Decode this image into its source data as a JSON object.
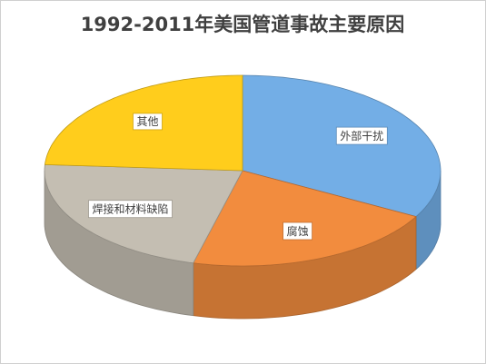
{
  "chart_data": {
    "type": "pie3d",
    "title": "1992-2011年美国管道事故主要原因",
    "categories": [
      "外部干扰",
      "腐蚀",
      "焊接和材料缺陷",
      "其他"
    ],
    "values": [
      33,
      21,
      22,
      24
    ],
    "colors": [
      "#73aee6",
      "#f28c3e",
      "#c4beb2",
      "#ffcd1c"
    ]
  }
}
